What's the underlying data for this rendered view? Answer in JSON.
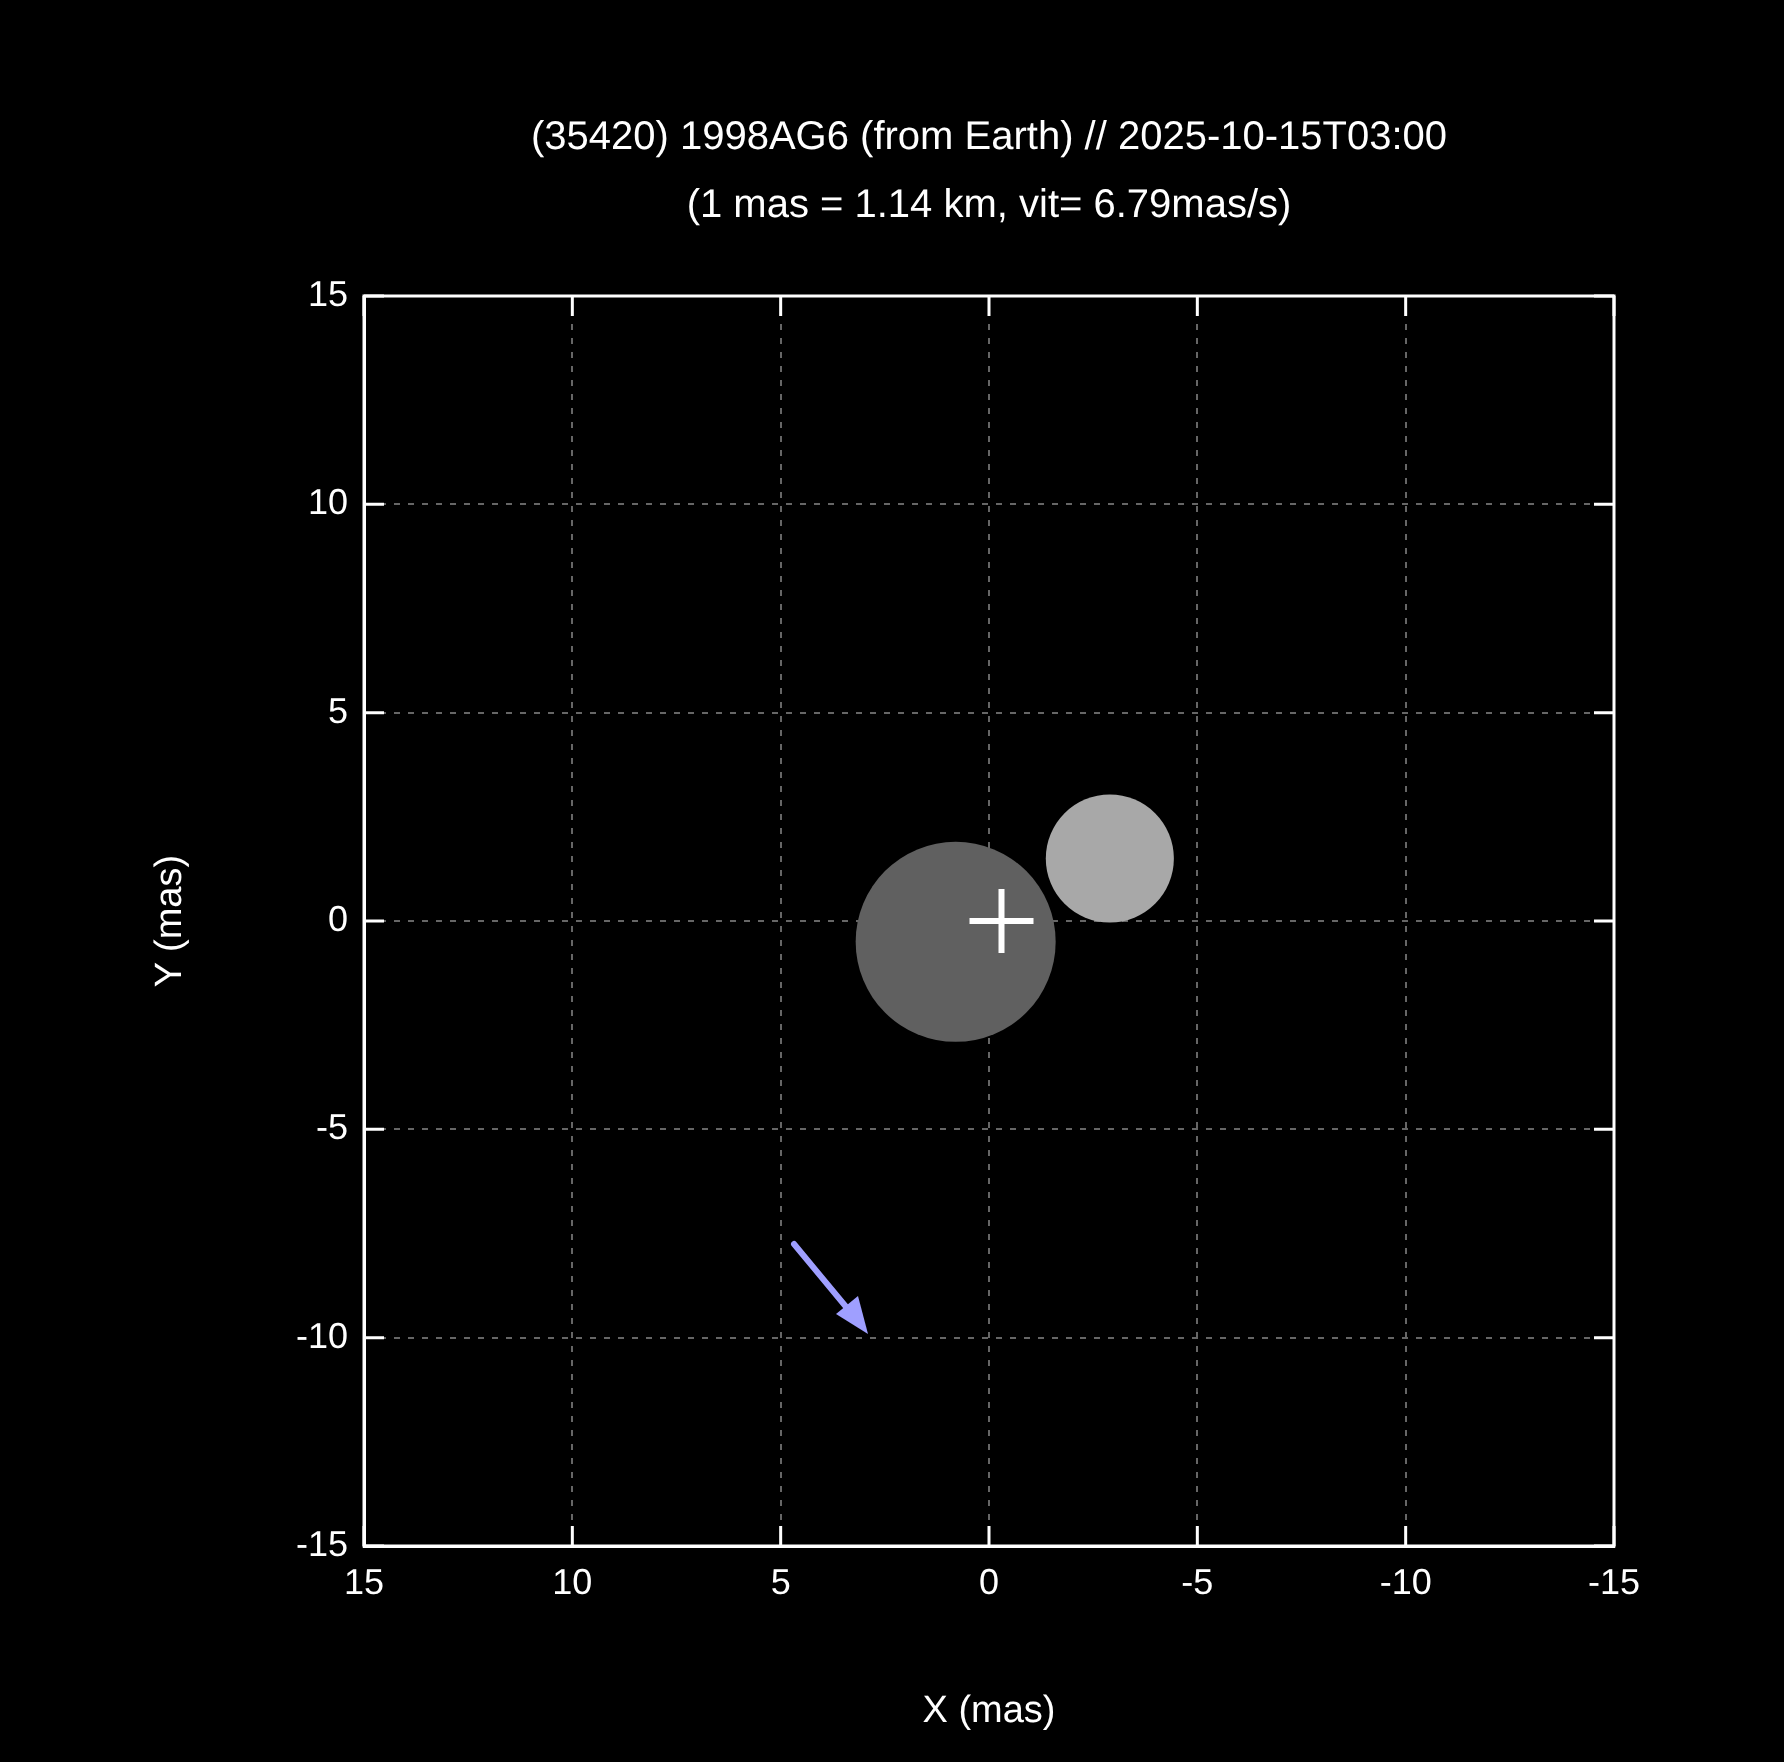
{
  "chart_data": {
    "type": "bubble",
    "title": "(35420) 1998AG6 (from Earth) // 2025-10-15T03:00",
    "subtitle": "(1 mas = 1.14 km, vit= 6.79mas/s)",
    "xlabel": "X (mas)",
    "ylabel": "Y (mas)",
    "xlim": [
      15,
      -15
    ],
    "ylim": [
      -15,
      15
    ],
    "xticks": [
      15,
      10,
      5,
      0,
      -5,
      -10,
      -15
    ],
    "yticks": [
      -15,
      -10,
      -5,
      0,
      5,
      10,
      15
    ],
    "grid": true,
    "series": [
      {
        "type": "bubble",
        "x": [
          0.8,
          -2.9
        ],
        "values": [
          -0.5,
          1.5
        ],
        "sizes": [
          1,
          0.41
        ],
        "colors": [
          "#606060",
          "#a8a8a8"
        ]
      },
      {
        "type": "scatter",
        "x": [
          -0.3
        ],
        "values": [
          0
        ],
        "color": "#ffffff",
        "marker": "cross"
      }
    ]
  }
}
